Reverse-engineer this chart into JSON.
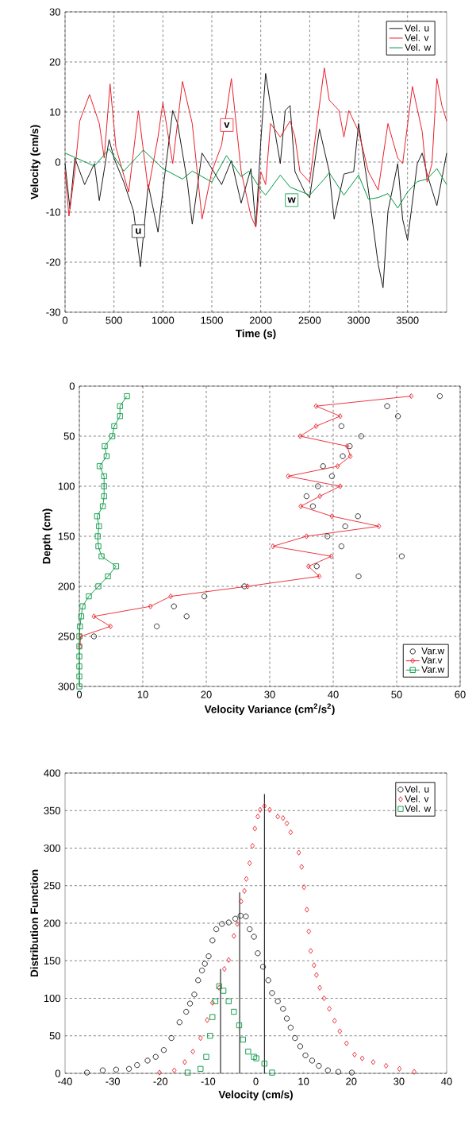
{
  "chart_data": [
    {
      "type": "line",
      "xlabel": "Time (s)",
      "ylabel": "Velocity (cm/s)",
      "xlim": [
        0,
        3900
      ],
      "xticks": [
        0,
        500,
        1000,
        1500,
        2000,
        2500,
        3000,
        3500
      ],
      "ylim": [
        -30,
        30
      ],
      "yticks": [
        -30,
        -20,
        -10,
        0,
        10,
        20,
        30
      ],
      "grid": true,
      "legend": "top right",
      "marker": "none",
      "series": [
        {
          "name": "Vel. u",
          "color": "#1a1a1a",
          "x": [
            0,
            50,
            100,
            200,
            300,
            350,
            450,
            500,
            600,
            700,
            770,
            850,
            950,
            1000,
            1100,
            1150,
            1250,
            1300,
            1400,
            1500,
            1600,
            1700,
            1800,
            1900,
            1950,
            2000,
            2050,
            2100,
            2200,
            2250,
            2300,
            2350,
            2450,
            2500,
            2600,
            2700,
            2750,
            2850,
            2950,
            3000,
            3100,
            3200,
            3250,
            3300,
            3400,
            3450,
            3500,
            3600,
            3650,
            3700,
            3800,
            3900
          ],
          "values": [
            -0.3,
            -9.3,
            0.8,
            -4.5,
            -0.3,
            -7.7,
            4.5,
            0.8,
            -4,
            -9.8,
            -20.9,
            -4.5,
            -14,
            -5.6,
            10.3,
            7.7,
            -4,
            -12.4,
            1.8,
            -1.3,
            -4.5,
            0.3,
            -8.2,
            -1.3,
            -13,
            4,
            17.7,
            11.3,
            -0.3,
            10.3,
            11.3,
            -1.9,
            -6,
            -7.1,
            6.6,
            -1.9,
            -11.4,
            -2.4,
            -1.9,
            7.7,
            -5.6,
            -20.4,
            -25.1,
            -9.8,
            -0.3,
            -11.4,
            -15.6,
            -0.3,
            1.8,
            -2.4,
            -8.7,
            1.8
          ]
        },
        {
          "name": "Vel. v",
          "color": "#e8202a",
          "x": [
            0,
            40,
            100,
            150,
            250,
            350,
            400,
            460,
            520,
            650,
            750,
            850,
            950,
            1000,
            1100,
            1200,
            1300,
            1400,
            1500,
            1600,
            1700,
            1800,
            1900,
            1950,
            2000,
            2050,
            2100,
            2200,
            2300,
            2350,
            2400,
            2500,
            2600,
            2650,
            2700,
            2800,
            2850,
            2900,
            3000,
            3100,
            3200,
            3300,
            3400,
            3450,
            3550,
            3650,
            3700,
            3750,
            3800,
            3850,
            3900
          ],
          "values": [
            -1.9,
            -10.8,
            -1.9,
            8.2,
            13.5,
            7.7,
            0.8,
            15.6,
            2.9,
            -6,
            10.3,
            -5.6,
            5,
            11.9,
            -0.3,
            16.1,
            7.7,
            -11.4,
            -1.9,
            3.4,
            16.7,
            -1.9,
            -10.8,
            -13,
            -1.9,
            -4.5,
            7.7,
            5,
            8.2,
            5,
            -1.9,
            -4,
            11.4,
            18.8,
            12.4,
            10.3,
            5,
            10.3,
            6.1,
            -1.9,
            -5.6,
            7.7,
            0.8,
            -0.3,
            15.1,
            6.1,
            -4,
            -0.3,
            16.7,
            11.4,
            8.2
          ]
        },
        {
          "name": "Vel. w",
          "color": "#00963f",
          "x": [
            0,
            300,
            450,
            600,
            800,
            1000,
            1200,
            1300,
            1500,
            1650,
            1800,
            1880,
            2000,
            2050,
            2200,
            2300,
            2500,
            2650,
            2700,
            2850,
            3000,
            3100,
            3200,
            3300,
            3400,
            3500,
            3600,
            3700,
            3800,
            3900
          ],
          "values": [
            1.8,
            -0.8,
            2.6,
            -1.8,
            2.4,
            -1.3,
            -3.4,
            -1.8,
            -4,
            1.3,
            -2.9,
            -1.8,
            -5.5,
            -6.6,
            -2.6,
            -5,
            -6.6,
            -3.4,
            -2.1,
            -6.6,
            -2.6,
            -7.4,
            -7.1,
            -6.3,
            -9.2,
            -6,
            -3.9,
            -3.4,
            -1.3,
            -4.5
          ]
        }
      ],
      "annotations": [
        {
          "text": "u",
          "x": 749,
          "y": -13.8
        },
        {
          "text": "v",
          "x": 1653,
          "y": 7.4
        },
        {
          "text": "w",
          "x": 2316,
          "y": -7.6
        }
      ]
    },
    {
      "type": "line",
      "xlabel": "Velocity Variance (cm$^{2}$/s$^{2}$)",
      "ylabel": "Depth (cm)",
      "xlim": [
        0,
        60
      ],
      "xticks": [
        0,
        10,
        20,
        30,
        40,
        50,
        60
      ],
      "ylim": [
        300,
        0
      ],
      "yticks": [
        0,
        50,
        100,
        150,
        200,
        250,
        300
      ],
      "grid": true,
      "legend": "bottom right",
      "series": [
        {
          "name": "Var.w",
          "type": "scatter",
          "marker": "circle",
          "color": "#1a1a1a",
          "x": [
            56.8,
            48.5,
            50.2,
            41.3,
            44.4,
            42.6,
            41.5,
            38.4,
            39.8,
            37.6,
            35.8,
            36.8,
            43.9,
            41.9,
            39.1,
            41.3,
            50.8,
            37.4,
            44.0,
            26.0,
            19.7,
            14.9,
            16.9,
            12.2,
            2.3
          ],
          "values": [
            10,
            20,
            30,
            40,
            50,
            60,
            70,
            80,
            90,
            100,
            110,
            120,
            130,
            140,
            150,
            160,
            170,
            180,
            190,
            200,
            210,
            220,
            230,
            240,
            250
          ]
        },
        {
          "name": "Var.v",
          "type": "line",
          "marker": "diamond",
          "color": "#e8202a",
          "x": [
            52.3,
            37.3,
            41.1,
            37.3,
            34.8,
            42.2,
            42.7,
            40.7,
            32.9,
            41.1,
            37.9,
            34.9,
            39.8,
            47.2,
            35.8,
            30.5,
            39.7,
            36.1,
            37.8,
            26.5,
            14.4,
            11.2,
            2.3,
            4.9,
            0.2,
            0.1
          ],
          "values": [
            10,
            20,
            30,
            40,
            50,
            60,
            70,
            80,
            90,
            100,
            110,
            120,
            130,
            140,
            150,
            160,
            170,
            180,
            190,
            200,
            210,
            220,
            230,
            240,
            250,
            260
          ]
        },
        {
          "name": "Var.w",
          "type": "line",
          "marker": "square",
          "color": "#00963f",
          "x": [
            7.5,
            6.4,
            6.4,
            5.5,
            5.2,
            4.0,
            4.3,
            3.2,
            3.9,
            3.9,
            3.9,
            3.7,
            2.8,
            3.1,
            2.9,
            3.0,
            3.5,
            5.8,
            4.5,
            3.0,
            1.5,
            0.5,
            0.3,
            0.1,
            0,
            0,
            0,
            0,
            0,
            0
          ],
          "values": [
            10,
            20,
            30,
            40,
            50,
            60,
            70,
            80,
            90,
            100,
            110,
            120,
            130,
            140,
            150,
            160,
            170,
            180,
            190,
            200,
            210,
            220,
            230,
            240,
            250,
            260,
            270,
            280,
            290,
            300
          ]
        }
      ]
    },
    {
      "type": "scatter",
      "xlabel": "Velocity (cm/s)",
      "ylabel": "Distribution Function",
      "xlim": [
        -40,
        40
      ],
      "xticks": [
        -40,
        -30,
        -20,
        -10,
        0,
        10,
        20,
        30,
        40
      ],
      "ylim": [
        0,
        400
      ],
      "yticks": [
        0,
        50,
        100,
        150,
        200,
        250,
        300,
        350,
        400
      ],
      "grid": "y",
      "legend": "top right",
      "series": [
        {
          "name": "Vel. u",
          "marker": "circle",
          "color": "#1a1a1a",
          "x": [
            -35.4,
            -32.1,
            -29.3,
            -26.6,
            -24.9,
            -22.7,
            -21,
            -19.3,
            -17.7,
            -16,
            -14.6,
            -13.8,
            -12.9,
            -12.1,
            -11.3,
            -10.7,
            -9.9,
            -9.1,
            -8.3,
            -7.1,
            -5.7,
            -4.3,
            -3.2,
            -2.1,
            -1.3,
            -0.4,
            0.4,
            1.5,
            2.6,
            3.4,
            4.6,
            5.7,
            6.5,
            7.3,
            8.2,
            9.3,
            10.4,
            11.8,
            13.2,
            15.1,
            17.3,
            20.1
          ],
          "values": [
            1,
            4,
            5,
            6,
            11,
            17,
            22,
            31,
            47,
            68,
            82,
            93,
            105,
            124,
            137,
            146,
            156,
            177,
            192,
            199,
            201,
            206,
            210,
            209,
            192,
            182,
            160,
            142,
            124,
            107,
            96,
            86,
            73,
            61,
            47,
            36,
            24,
            17,
            10,
            4,
            2,
            1
          ]
        },
        {
          "name": "Vel. v",
          "marker": "diamond",
          "color": "#e8202a",
          "x": [
            -20.2,
            -17.1,
            -14.9,
            -13.2,
            -11.6,
            -10.2,
            -9.1,
            -7.7,
            -6.6,
            -5.7,
            -4.6,
            -3.9,
            -3.1,
            -2.4,
            -2,
            -1.3,
            -0.7,
            -0.2,
            0.4,
            0.9,
            1.8,
            2.9,
            4.6,
            5.7,
            6.5,
            7.3,
            9,
            9.6,
            10.1,
            10.7,
            11.1,
            11.5,
            12.2,
            12.7,
            13.4,
            14.3,
            15.4,
            16.5,
            17.6,
            19,
            20.7,
            22.3,
            24.6,
            27.3,
            30.1,
            33.2
          ],
          "values": [
            1,
            4,
            15,
            29,
            47,
            71,
            94,
            114,
            139,
            151,
            183,
            199,
            229,
            243,
            259,
            280,
            303,
            326,
            342,
            351,
            356,
            351,
            342,
            340,
            333,
            321,
            294,
            275,
            248,
            218,
            189,
            163,
            144,
            131,
            114,
            100,
            86,
            70,
            56,
            40,
            25,
            20,
            15,
            10,
            6,
            2
          ]
        },
        {
          "name": "Vel. w",
          "marker": "square",
          "color": "#00963f",
          "x": [
            -14.3,
            -11.6,
            -10.4,
            -9.6,
            -9.1,
            -8.5,
            -7.7,
            -6.8,
            -5.7,
            -4.6,
            -3.5,
            -2.7,
            -1.6,
            -0.4,
            0.1,
            1.8,
            3.4
          ],
          "values": [
            1,
            6,
            22,
            50,
            75,
            96,
            116,
            110,
            96,
            82,
            64,
            45,
            29,
            22,
            20,
            13,
            1
          ]
        },
        {
          "type": "line",
          "marker": "none",
          "color": "#000000",
          "x": [
            -7.4,
            -7.4
          ],
          "values": [
            0,
            139
          ]
        },
        {
          "type": "line",
          "marker": "none",
          "color": "#000000",
          "x": [
            -3.4,
            -3.4
          ],
          "values": [
            0,
            241
          ]
        },
        {
          "type": "line",
          "marker": "none",
          "color": "#000000",
          "x": [
            1.8,
            1.8
          ],
          "values": [
            0,
            372
          ]
        }
      ]
    }
  ]
}
